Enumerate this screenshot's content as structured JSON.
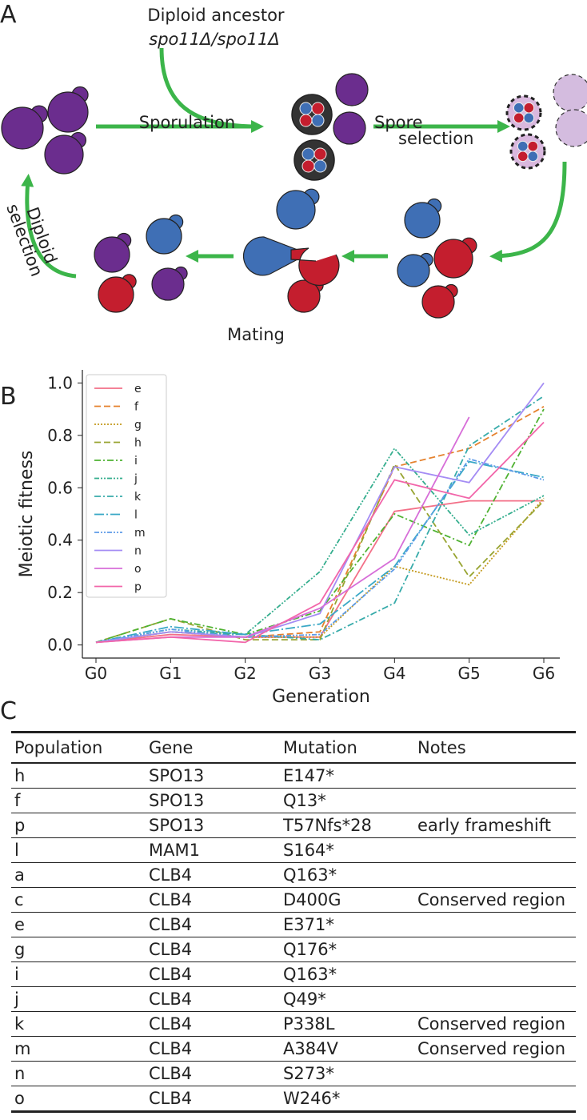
{
  "panels": [
    "A",
    "B",
    "C"
  ],
  "diagram": {
    "ancestor": "Diploid ancestor",
    "genotype": "spo11Δ/spo11Δ",
    "sporulation": "Sporulation",
    "spore_selection": [
      "Spore",
      "selection"
    ],
    "diploid_selection": [
      "Diploid",
      "selection"
    ],
    "mating": "Mating"
  },
  "chart_data": {
    "type": "line",
    "xlabel": "Generation",
    "ylabel": "Meiotic fitness",
    "categories": [
      "G0",
      "G1",
      "G2",
      "G3",
      "G4",
      "G5",
      "G6"
    ],
    "ylim": [
      -0.05,
      1.05
    ],
    "yticks": [
      {
        "value": 0,
        "label": "0.0"
      },
      {
        "value": 0.2,
        "label": "0.2"
      },
      {
        "value": 0.4,
        "label": "0.4"
      },
      {
        "value": 0.6,
        "label": "0.6"
      },
      {
        "value": 0.8,
        "label": "0.8"
      },
      {
        "value": 1,
        "label": "1.0"
      }
    ],
    "legend": "upper left",
    "grid": false,
    "series": [
      {
        "name": "e",
        "color": "#f37088",
        "style": "solid",
        "values": [
          0.01,
          0.04,
          0.03,
          0.03,
          0.51,
          0.55,
          0.55
        ]
      },
      {
        "name": "f",
        "color": "#e5822e",
        "style": "dashed",
        "values": [
          0.01,
          0.05,
          0.03,
          0.05,
          0.68,
          0.75,
          0.91
        ]
      },
      {
        "name": "g",
        "color": "#c49a1e",
        "style": "dotted",
        "values": [
          0.01,
          0.05,
          0.03,
          0.03,
          0.3,
          0.23,
          0.56
        ]
      },
      {
        "name": "h",
        "color": "#98a431",
        "style": "dashed",
        "values": [
          0.01,
          0.1,
          0.02,
          0.02,
          0.69,
          0.26,
          0.55
        ]
      },
      {
        "name": "i",
        "color": "#4fb232",
        "style": "dashdot",
        "values": [
          0.01,
          0.1,
          0.04,
          0.13,
          0.5,
          0.38,
          0.9
        ]
      },
      {
        "name": "j",
        "color": "#35ae8e",
        "style": "dashdotdot",
        "values": [
          0.01,
          0.06,
          0.04,
          0.28,
          0.75,
          0.42,
          0.57
        ]
      },
      {
        "name": "k",
        "color": "#37abaa",
        "style": "dashdot",
        "values": [
          0.01,
          0.05,
          0.04,
          0.02,
          0.16,
          0.76,
          0.95
        ]
      },
      {
        "name": "l",
        "color": "#3aa8c6",
        "style": "longdashdot",
        "values": [
          0.01,
          0.07,
          0.04,
          0.08,
          0.3,
          0.7,
          0.64
        ]
      },
      {
        "name": "m",
        "color": "#5d9be8",
        "style": "dashdotdot",
        "values": [
          0.01,
          0.06,
          0.03,
          0.04,
          0.29,
          0.71,
          0.63
        ]
      },
      {
        "name": "n",
        "color": "#a48cf4",
        "style": "solid",
        "values": [
          0.01,
          0.05,
          0.03,
          0.12,
          0.68,
          0.62,
          1.0
        ]
      },
      {
        "name": "o",
        "color": "#d76ed8",
        "style": "solid",
        "values": [
          0.01,
          0.03,
          0.03,
          0.14,
          0.33,
          0.87,
          null
        ]
      },
      {
        "name": "p",
        "color": "#f266aa",
        "style": "solid",
        "values": [
          0.01,
          0.03,
          0.01,
          0.16,
          0.63,
          0.56,
          0.85
        ]
      }
    ]
  },
  "table": {
    "columns": [
      "Population",
      "Gene",
      "Mutation",
      "Notes"
    ],
    "rows": [
      {
        "population": "h",
        "gene": "SPO13",
        "mutation": "E147*"
      },
      {
        "population": "f",
        "gene": "SPO13",
        "mutation": "Q13*"
      },
      {
        "population": "p",
        "gene": "SPO13",
        "mutation": "T57Nfs*28",
        "notes": "early frameshift"
      },
      {
        "population": "l",
        "gene": "MAM1",
        "mutation": "S164*"
      },
      {
        "population": "a",
        "gene": "CLB4",
        "mutation": "Q163*"
      },
      {
        "population": "c",
        "gene": "CLB4",
        "mutation": "D400G",
        "notes": "Conserved region"
      },
      {
        "population": "e",
        "gene": "CLB4",
        "mutation": "E371*"
      },
      {
        "population": "g",
        "gene": "CLB4",
        "mutation": "Q176*"
      },
      {
        "population": "i",
        "gene": "CLB4",
        "mutation": "Q163*"
      },
      {
        "population": "j",
        "gene": "CLB4",
        "mutation": "Q49*"
      },
      {
        "population": "k",
        "gene": "CLB4",
        "mutation": "P338L",
        "notes": "Conserved region"
      },
      {
        "population": "m",
        "gene": "CLB4",
        "mutation": "A384V",
        "notes": "Conserved region"
      },
      {
        "population": "n",
        "gene": "CLB4",
        "mutation": "S273*"
      },
      {
        "population": "o",
        "gene": "CLB4",
        "mutation": "W246*"
      }
    ]
  }
}
